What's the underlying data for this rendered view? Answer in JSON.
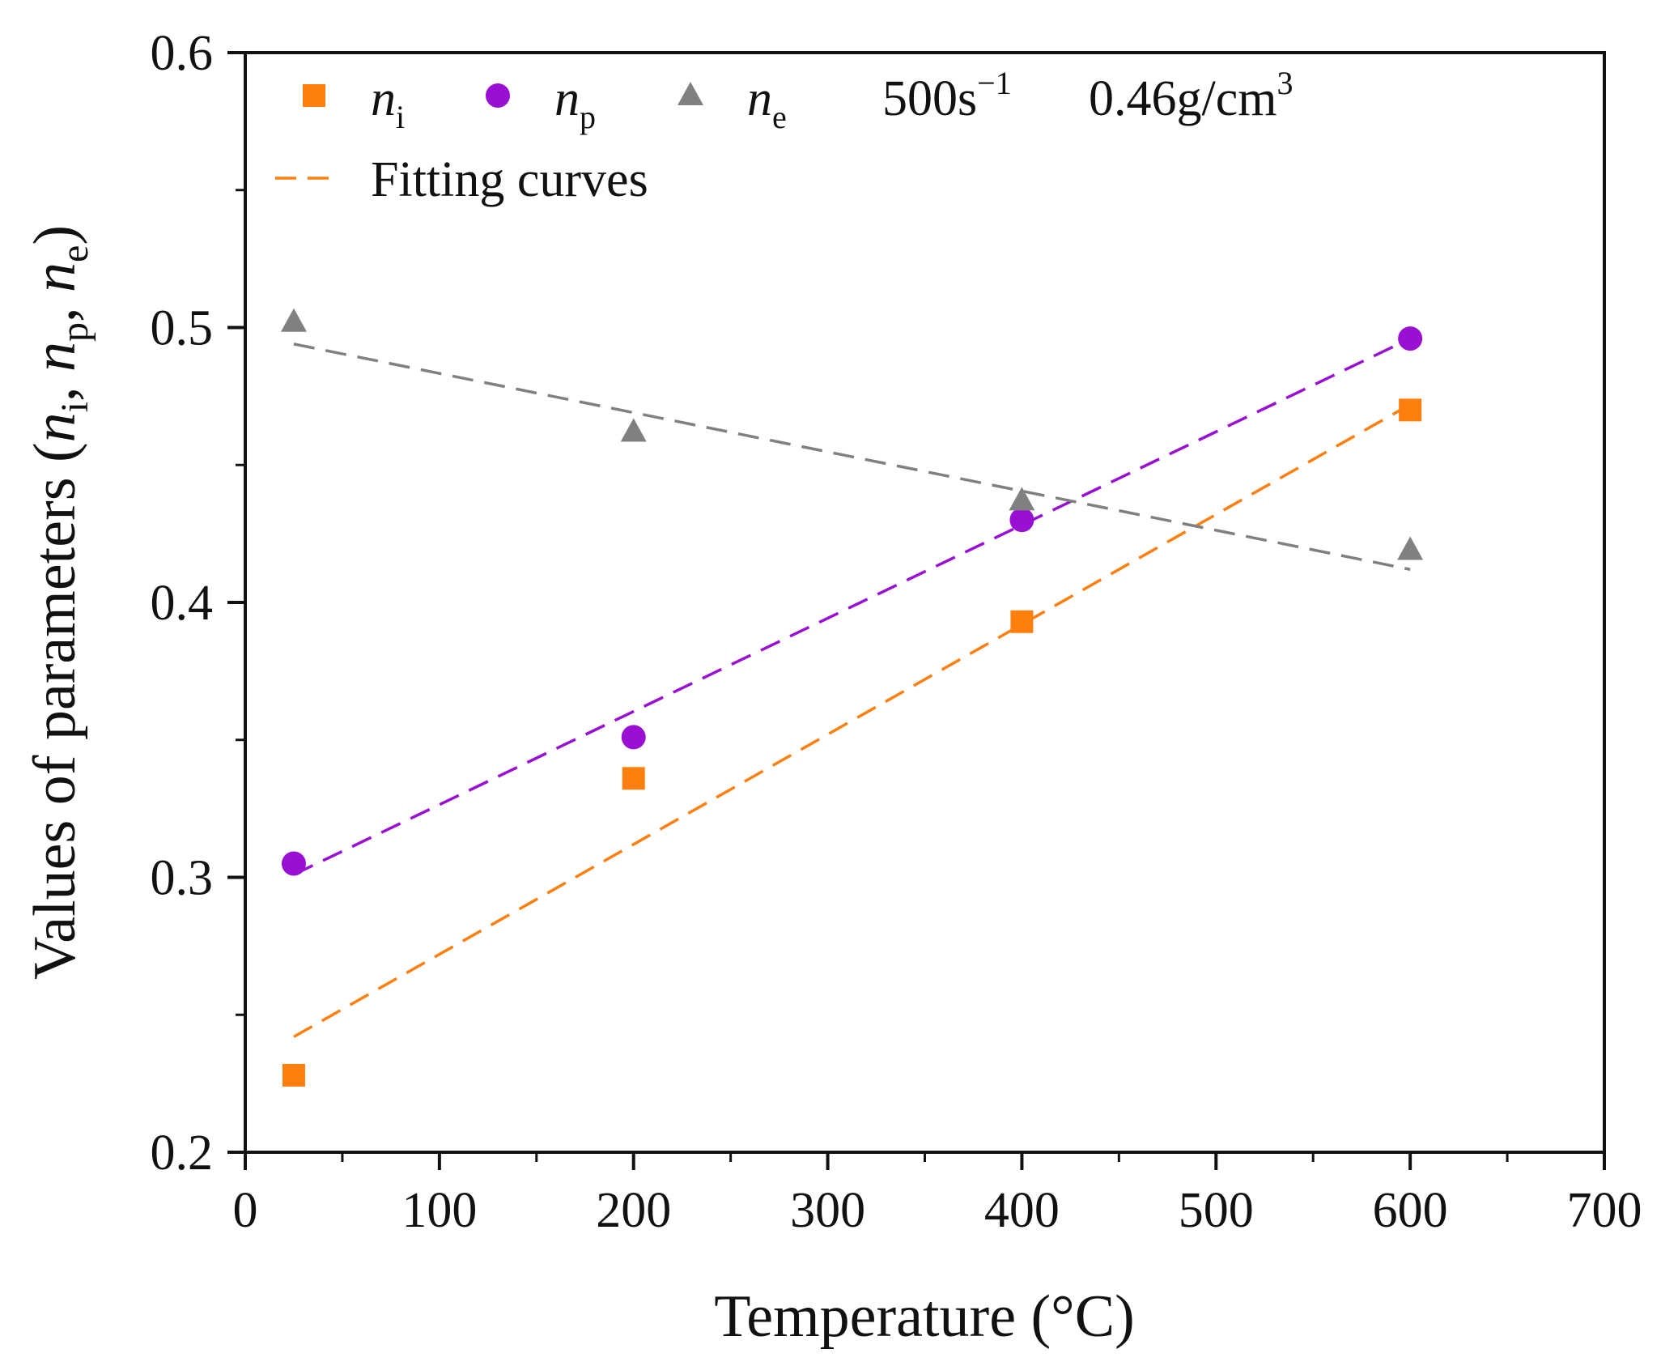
{
  "chart_data": {
    "type": "scatter",
    "title": "",
    "xlabel": "Temperature (°C)",
    "ylabel": {
      "prefix": "Values of parameters (",
      "parts": [
        {
          "sym": "n",
          "sub": "i",
          "sep": ", "
        },
        {
          "sym": "n",
          "sub": "p",
          "sep": ", "
        },
        {
          "sym": "n",
          "sub": "e",
          "sep": ")"
        }
      ]
    },
    "xlim": [
      0,
      700
    ],
    "ylim": [
      0.2,
      0.6
    ],
    "x_major_ticks": [
      0,
      100,
      200,
      300,
      400,
      500,
      600,
      700
    ],
    "x_tick_labels": [
      "0",
      "100",
      "200",
      "300",
      "400",
      "500",
      "600",
      "700"
    ],
    "y_major_ticks": [
      0.2,
      0.3,
      0.4,
      0.5,
      0.6
    ],
    "y_tick_labels": [
      "0.2",
      "0.3",
      "0.4",
      "0.5",
      "0.6"
    ],
    "grid": false,
    "legend_position": "top-left",
    "series": [
      {
        "symbol": "n",
        "subscript": "i",
        "marker": "square",
        "color": "#FF7F0E",
        "x": [
          25,
          200,
          400,
          600
        ],
        "y": [
          0.228,
          0.336,
          0.393,
          0.47
        ],
        "fit": {
          "x": [
            25,
            600
          ],
          "y": [
            0.242,
            0.472
          ]
        }
      },
      {
        "symbol": "n",
        "subscript": "p",
        "marker": "circle",
        "color": "#9A0FD4",
        "x": [
          25,
          200,
          400,
          600
        ],
        "y": [
          0.305,
          0.351,
          0.43,
          0.496
        ],
        "fit": {
          "x": [
            25,
            600
          ],
          "y": [
            0.301,
            0.496
          ]
        }
      },
      {
        "symbol": "n",
        "subscript": "e",
        "marker": "triangle",
        "color": "#808080",
        "x": [
          25,
          200,
          400,
          600
        ],
        "y": [
          0.502,
          0.462,
          0.437,
          0.419
        ],
        "fit": {
          "x": [
            25,
            600
          ],
          "y": [
            0.494,
            0.412
          ]
        }
      }
    ],
    "annotations": {
      "strain_rate": {
        "base": "500s",
        "sup": "−1"
      },
      "density": {
        "base": "0.46g/cm",
        "sup": "3"
      }
    },
    "fit_legend_label": "Fitting curves",
    "fit_legend_color": "#FF7F0E"
  }
}
